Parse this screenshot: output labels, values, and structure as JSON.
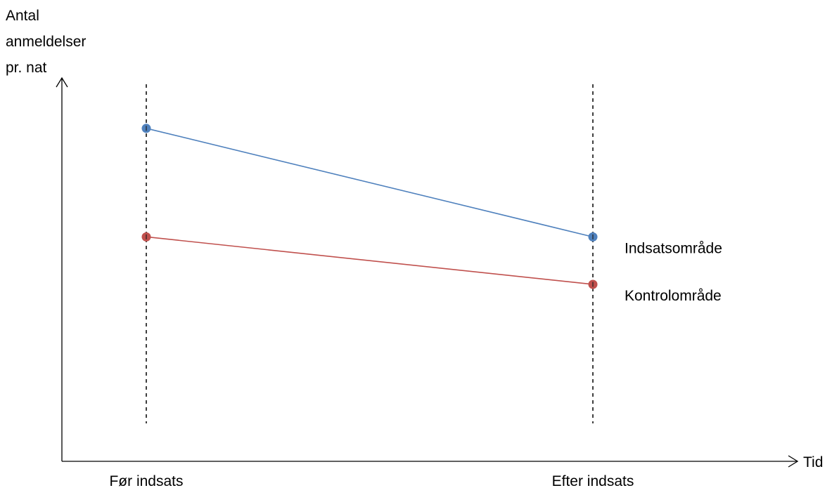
{
  "chart_data": {
    "type": "line",
    "title": "",
    "ylabel": [
      "Antal",
      "anmeldelser",
      "pr. nat"
    ],
    "xlabel": "Tid",
    "categories": [
      "Før indsats",
      "Efter indsats"
    ],
    "y_ticks_shown": false,
    "grid": false,
    "series": [
      {
        "name": "Indsatsområde",
        "color": "#4F81BD",
        "values": [
          0.87,
          0.55
        ]
      },
      {
        "name": "Kontrolområde",
        "color": "#C0504D",
        "values": [
          0.55,
          0.41
        ]
      }
    ],
    "guides": [
      "dashed vertical line at Før indsats",
      "dashed vertical line at Efter indsats"
    ]
  }
}
